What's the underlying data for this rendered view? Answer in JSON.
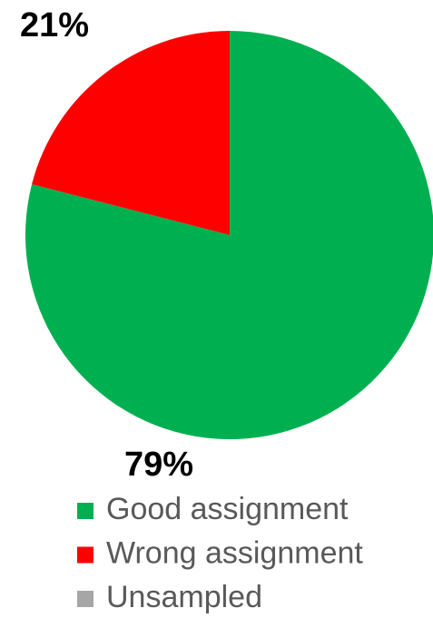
{
  "chart_data": {
    "type": "pie",
    "categories": [
      "Good assignment",
      "Wrong assignment",
      "Unsampled"
    ],
    "values": [
      79,
      21,
      0
    ],
    "value_labels": [
      "79%",
      "21%",
      null
    ],
    "colors": [
      "#00b050",
      "#ff0000",
      "#a6a6a6"
    ],
    "legend": "bottom"
  }
}
